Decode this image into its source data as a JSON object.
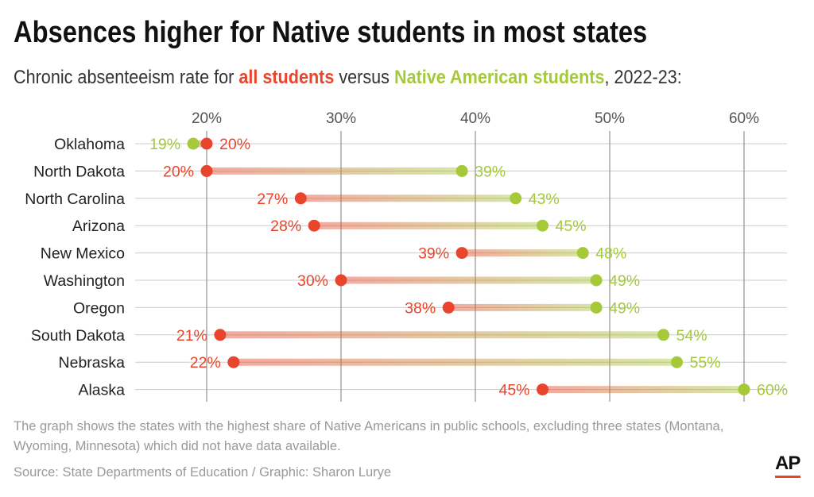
{
  "title": "Absences higher for Native students in most states",
  "subtitle": {
    "prefix": "Chronic absenteeism rate for ",
    "all_students": "all students",
    "middle": " versus ",
    "native_students": "Native American students",
    "suffix": ", 2022-23:"
  },
  "note": "The graph shows the states with the highest share of Native Americans in public schools, excluding three states (Montana, Wyoming, Minnesota) which did not have data available.",
  "source": "Source: State Departments of Education / Graphic: Sharon Lurye",
  "logo": "AP",
  "colors": {
    "all": "#e8452c",
    "native": "#a6c93a",
    "grid": "#999999"
  },
  "chart_data": {
    "type": "dumbbell",
    "xlim": [
      20,
      60
    ],
    "xticks": [
      "20%",
      "30%",
      "40%",
      "50%",
      "60%"
    ],
    "xtick_values": [
      20,
      30,
      40,
      50,
      60
    ],
    "grid": true,
    "categories": [
      "Oklahoma",
      "North Dakota",
      "North Carolina",
      "Arizona",
      "New Mexico",
      "Washington",
      "Oregon",
      "South Dakota",
      "Nebraska",
      "Alaska"
    ],
    "series": [
      {
        "name": "all students",
        "values": [
          20,
          20,
          27,
          28,
          39,
          30,
          38,
          21,
          22,
          45
        ]
      },
      {
        "name": "Native American students",
        "values": [
          19,
          39,
          43,
          45,
          48,
          49,
          49,
          54,
          55,
          60
        ]
      }
    ]
  }
}
